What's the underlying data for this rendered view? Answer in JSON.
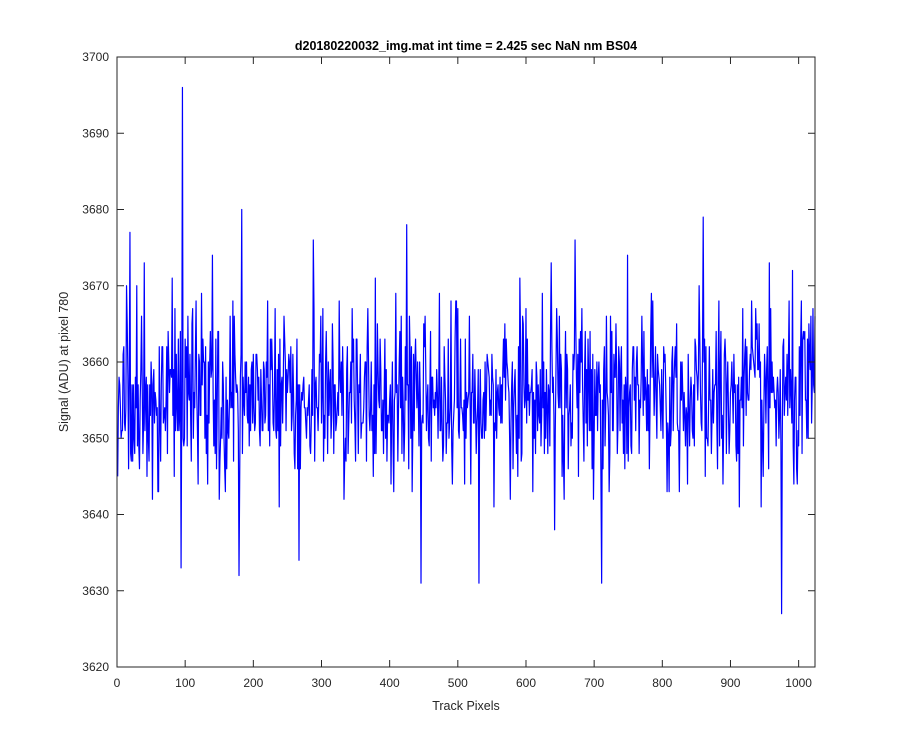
{
  "chart_data": {
    "type": "line",
    "title": "d20180220032_img.mat int time = 2.425 sec  NaN nm BS04",
    "xlabel": "Track Pixels",
    "ylabel": "Signal (ADU) at pixel 780",
    "xlim": [
      0,
      1024
    ],
    "ylim": [
      3620,
      3700
    ],
    "x_ticks": [
      0,
      100,
      200,
      300,
      400,
      500,
      600,
      700,
      800,
      900,
      1000
    ],
    "y_ticks": [
      3620,
      3630,
      3640,
      3650,
      3660,
      3670,
      3680,
      3690,
      3700
    ],
    "grid": false,
    "legend": "none",
    "series": [
      {
        "color": "#0000ff",
        "x_start": 1,
        "x_step": 1,
        "noise": {
          "mean": 3655.3,
          "std": 6.1,
          "min": 3627,
          "max": 3696,
          "count": 1024
        },
        "highlights": [
          {
            "x": 96,
            "y": 3696
          },
          {
            "x": 19,
            "y": 3677
          },
          {
            "x": 94,
            "y": 3633
          },
          {
            "x": 183,
            "y": 3680
          },
          {
            "x": 179,
            "y": 3632
          },
          {
            "x": 425,
            "y": 3678
          },
          {
            "x": 446,
            "y": 3631
          },
          {
            "x": 531,
            "y": 3631
          },
          {
            "x": 711,
            "y": 3631
          },
          {
            "x": 860,
            "y": 3679
          },
          {
            "x": 975,
            "y": 3627
          },
          {
            "x": 267,
            "y": 3634
          },
          {
            "x": 288,
            "y": 3676
          },
          {
            "x": 140,
            "y": 3674
          },
          {
            "x": 672,
            "y": 3676
          }
        ]
      }
    ]
  }
}
